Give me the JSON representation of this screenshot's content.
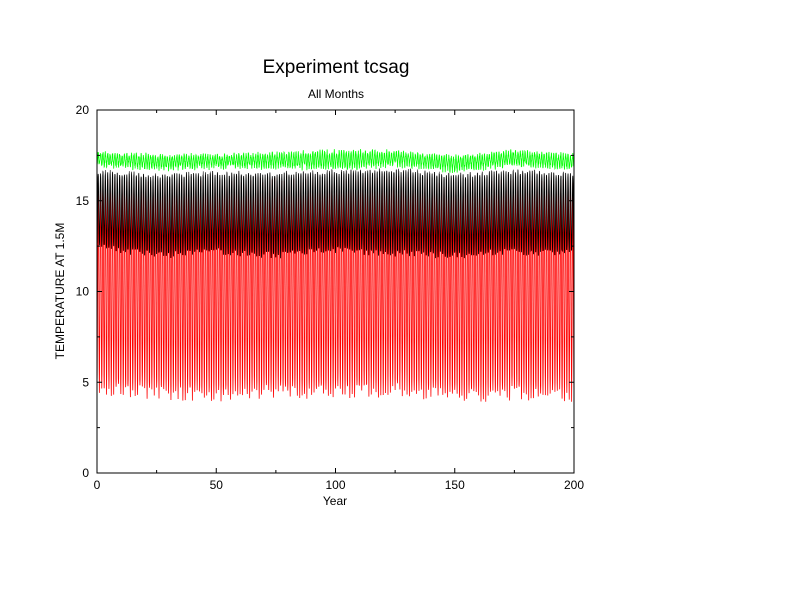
{
  "chart_data": {
    "type": "line",
    "title": "Experiment tcsag",
    "subtitle": "All Months",
    "xlabel": "Year",
    "ylabel": "TEMPERATURE AT 1.5M",
    "xlim": [
      0,
      200
    ],
    "ylim": [
      0,
      20
    ],
    "x_ticks": [
      0,
      50,
      100,
      150,
      200
    ],
    "y_ticks": [
      0,
      5,
      10,
      15,
      20
    ],
    "grid": false,
    "legend": "none",
    "series": [
      {
        "color": "#ff0000",
        "description_values": "monthly values oscillating seasonally each year",
        "annual_min_approx": 4.5,
        "annual_max_approx": 16.0,
        "x": [
          0,
          25,
          50,
          75,
          100,
          125,
          150,
          175,
          200
        ],
        "min_values": [
          4.6,
          4.4,
          4.3,
          4.5,
          4.4,
          4.6,
          4.2,
          4.4,
          4.3
        ],
        "max_values": [
          16.1,
          15.9,
          16.0,
          16.1,
          16.0,
          16.2,
          15.9,
          16.1,
          16.0
        ]
      },
      {
        "color": "#000000",
        "annual_min_approx": 12.0,
        "annual_max_approx": 16.5,
        "x": [
          0,
          25,
          50,
          75,
          100,
          125,
          150,
          175,
          200
        ],
        "min_values": [
          12.5,
          12.0,
          12.2,
          12.0,
          12.3,
          12.1,
          12.0,
          12.2,
          12.1
        ],
        "max_values": [
          16.6,
          16.4,
          16.5,
          16.5,
          16.6,
          16.7,
          16.4,
          16.6,
          16.5
        ]
      },
      {
        "color": "#ffffff",
        "annual_min_approx": 16.5,
        "annual_max_approx": 17.0,
        "x": [
          0,
          25,
          50,
          75,
          100,
          125,
          150,
          175,
          200
        ],
        "min_values": [
          16.6,
          16.5,
          16.5,
          16.6,
          16.6,
          16.7,
          16.5,
          16.7,
          16.6
        ],
        "max_values": [
          16.9,
          16.8,
          16.9,
          16.9,
          17.0,
          17.0,
          16.8,
          17.0,
          16.9
        ]
      },
      {
        "color": "#00ff00",
        "annual_min_approx": 16.8,
        "annual_max_approx": 17.6,
        "x": [
          0,
          25,
          50,
          75,
          100,
          125,
          150,
          175,
          200
        ],
        "min_values": [
          17.0,
          16.8,
          16.9,
          16.9,
          16.8,
          17.0,
          16.7,
          17.0,
          16.8
        ],
        "max_values": [
          17.6,
          17.5,
          17.5,
          17.6,
          17.7,
          17.7,
          17.4,
          17.7,
          17.5
        ]
      }
    ]
  }
}
